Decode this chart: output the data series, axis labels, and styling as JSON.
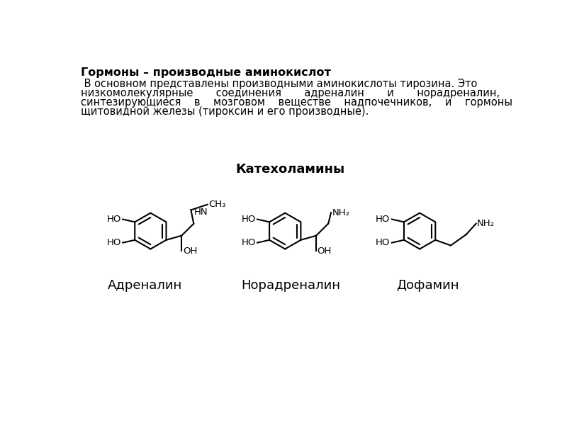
{
  "title_bold": "Гормоны – производные аминокислот",
  "body_lines": [
    " В основном представлены производными аминокислоты тирозина. Это",
    "низкомолекулярные       соединения       адреналин       и       норадреналин,",
    "синтезирующиеся    в    мозговом    веществе    надпочечников,    и    гормоны",
    "щитовидной железы (тироксин и его производные)."
  ],
  "section_title": "Катехоламины",
  "compound1": "Адреналин",
  "compound2": "Норадреналин",
  "compound3": "Дофамин",
  "bg_color": "#ffffff",
  "text_color": "#000000",
  "line_color": "#000000",
  "title_fontsize": 11.5,
  "body_fontsize": 10.5,
  "section_fontsize": 13,
  "compound_fontsize": 13,
  "chem_fontsize": 9.5
}
